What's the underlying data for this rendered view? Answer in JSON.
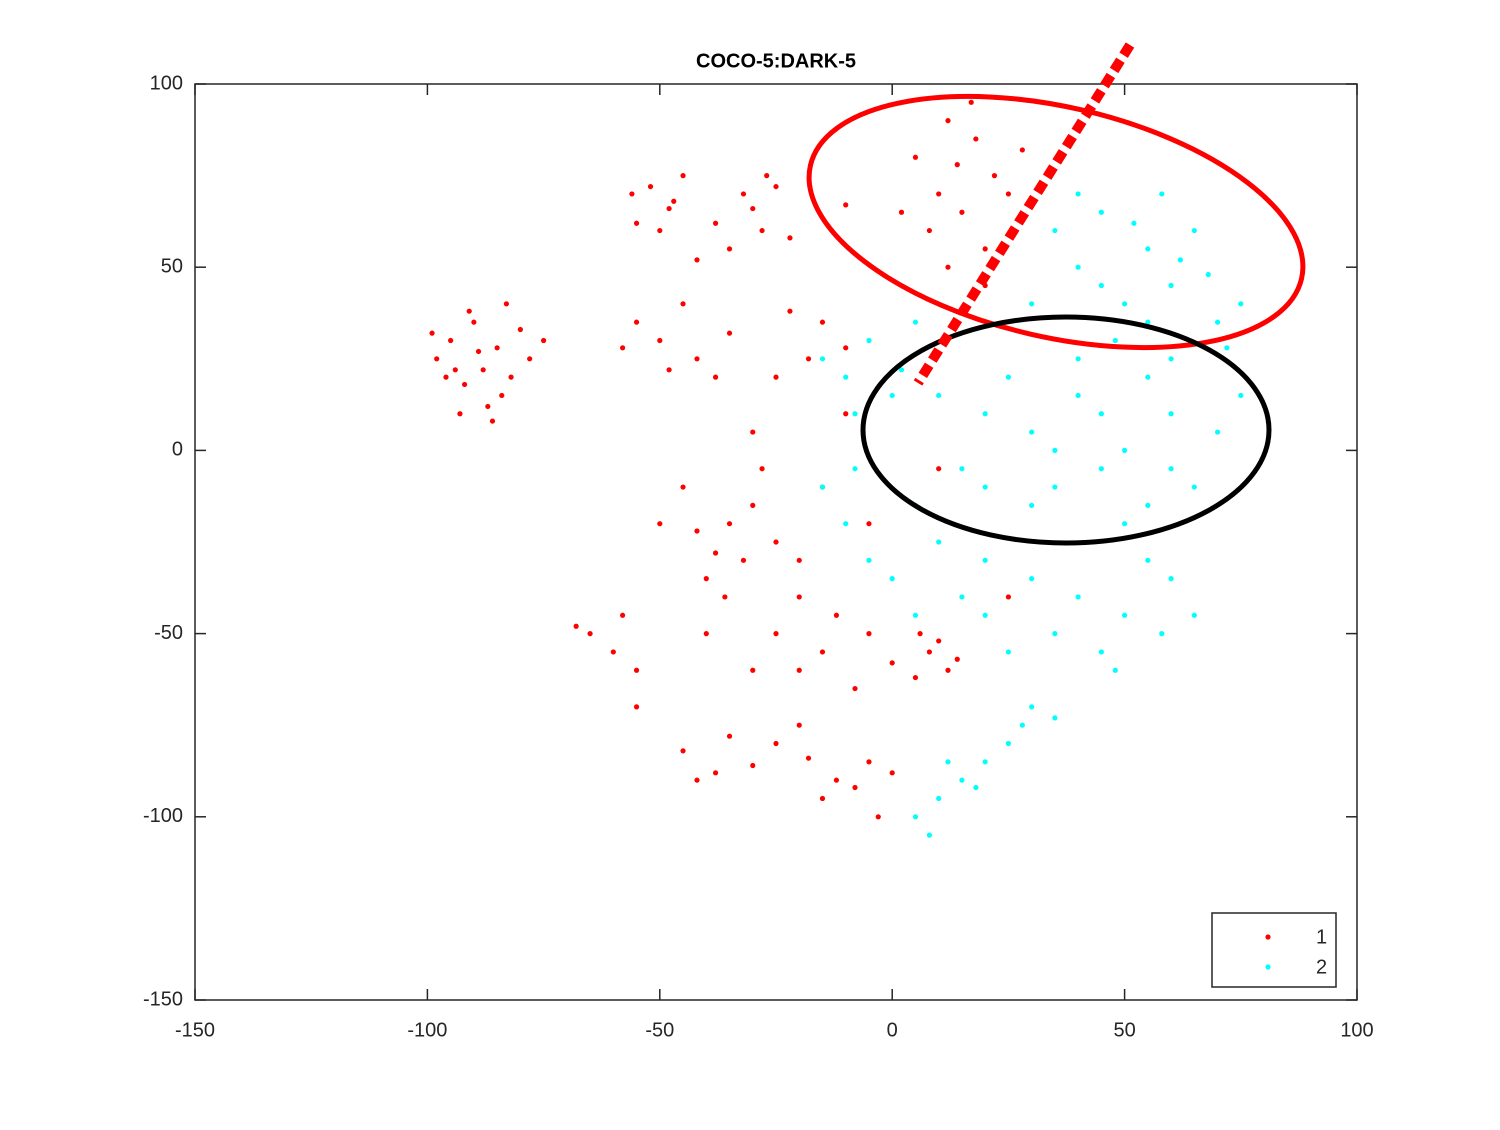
{
  "chart_data": {
    "type": "scatter",
    "title": "COCO-5:DARK-5",
    "xlim": [
      -150,
      100
    ],
    "ylim": [
      -150,
      100
    ],
    "xticks": [
      -150,
      -100,
      -50,
      0,
      50,
      100
    ],
    "yticks": [
      -150,
      -100,
      -50,
      0,
      50,
      100
    ],
    "legend": "southeast",
    "series": [
      {
        "name": "1",
        "color": "#ff0000",
        "x": [
          -95,
          -88,
          -92,
          -85,
          -98,
          -90,
          -82,
          -87,
          -93,
          -80,
          -96,
          -89,
          -84,
          -78,
          -91,
          -99,
          -86,
          -75,
          -94,
          -83,
          -52,
          -48,
          -55,
          -45,
          -50,
          -42,
          -56,
          -47,
          -32,
          -28,
          -35,
          -25,
          -30,
          -38,
          -22,
          -27,
          -50,
          -42,
          -55,
          -38,
          -45,
          -48,
          -35,
          -58,
          -22,
          -18,
          -15,
          -25,
          -10,
          5,
          12,
          18,
          10,
          22,
          15,
          8,
          20,
          25,
          14,
          2,
          -10,
          17,
          28,
          12,
          20,
          -38,
          -35,
          -40,
          -30,
          -42,
          -36,
          -32,
          -45,
          -28,
          -40,
          -25,
          -50,
          -20,
          -15,
          -30,
          -65,
          -60,
          -68,
          -58,
          -55,
          -15,
          -5,
          -20,
          -8,
          -25,
          0,
          -12,
          -30,
          8,
          12,
          10,
          5,
          14,
          6,
          -45,
          -38,
          -30,
          -35,
          -42,
          -25,
          -12,
          -5,
          -15,
          -8,
          0,
          -18,
          -3,
          -20,
          -55,
          -20,
          -5,
          10,
          -10,
          25
        ],
        "y": [
          30,
          22,
          18,
          28,
          25,
          35,
          20,
          12,
          10,
          33,
          20,
          27,
          15,
          25,
          38,
          32,
          8,
          30,
          22,
          40,
          72,
          66,
          62,
          75,
          60,
          52,
          70,
          68,
          70,
          60,
          55,
          72,
          66,
          62,
          58,
          75,
          30,
          25,
          35,
          20,
          40,
          22,
          32,
          28,
          38,
          25,
          35,
          20,
          28,
          80,
          90,
          85,
          70,
          75,
          65,
          60,
          55,
          70,
          78,
          65,
          67,
          95,
          82,
          50,
          45,
          -28,
          -20,
          -35,
          -15,
          -22,
          -40,
          -30,
          -10,
          -5,
          -50,
          -25,
          -20,
          -30,
          -10,
          5,
          -50,
          -55,
          -48,
          -45,
          -60,
          -55,
          -50,
          -60,
          -65,
          -50,
          -58,
          -45,
          -60,
          -55,
          -60,
          -52,
          -62,
          -57,
          -50,
          -82,
          -88,
          -86,
          -78,
          -90,
          -80,
          -90,
          -85,
          -95,
          -92,
          -88,
          -84,
          -100,
          -75,
          -70,
          -40,
          -20,
          -5,
          10,
          -40
        ]
      },
      {
        "name": "2",
        "color": "#00ffff",
        "x": [
          45,
          55,
          60,
          50,
          65,
          70,
          40,
          58,
          48,
          75,
          62,
          35,
          52,
          68,
          45,
          30,
          72,
          55,
          40,
          60,
          20,
          30,
          40,
          50,
          60,
          35,
          45,
          25,
          55,
          70,
          15,
          40,
          65,
          30,
          50,
          10,
          75,
          45,
          20,
          55,
          35,
          60,
          -10,
          -5,
          0,
          -15,
          5,
          -8,
          2,
          40,
          50,
          60,
          45,
          55,
          35,
          65,
          48,
          30,
          58,
          20,
          25,
          -10,
          -5,
          5,
          0,
          10,
          -15,
          15,
          -8,
          20,
          5,
          15,
          20,
          25,
          10,
          5,
          28,
          18,
          12,
          30,
          8,
          35
        ],
        "y": [
          65,
          55,
          45,
          40,
          60,
          35,
          50,
          70,
          30,
          40,
          52,
          60,
          62,
          48,
          45,
          40,
          28,
          35,
          70,
          25,
          10,
          5,
          15,
          0,
          10,
          -10,
          -5,
          20,
          20,
          5,
          -5,
          25,
          -10,
          -15,
          -20,
          15,
          15,
          10,
          -10,
          -15,
          0,
          -5,
          20,
          30,
          15,
          25,
          35,
          10,
          22,
          -40,
          -45,
          -35,
          -55,
          -30,
          -50,
          -45,
          -60,
          -35,
          -50,
          -45,
          -55,
          -20,
          -30,
          -15,
          -35,
          -25,
          -10,
          -40,
          -5,
          -30,
          -45,
          -90,
          -85,
          -80,
          -95,
          -100,
          -75,
          -92,
          -85,
          -70,
          -105,
          -73
        ]
      }
    ]
  }
}
